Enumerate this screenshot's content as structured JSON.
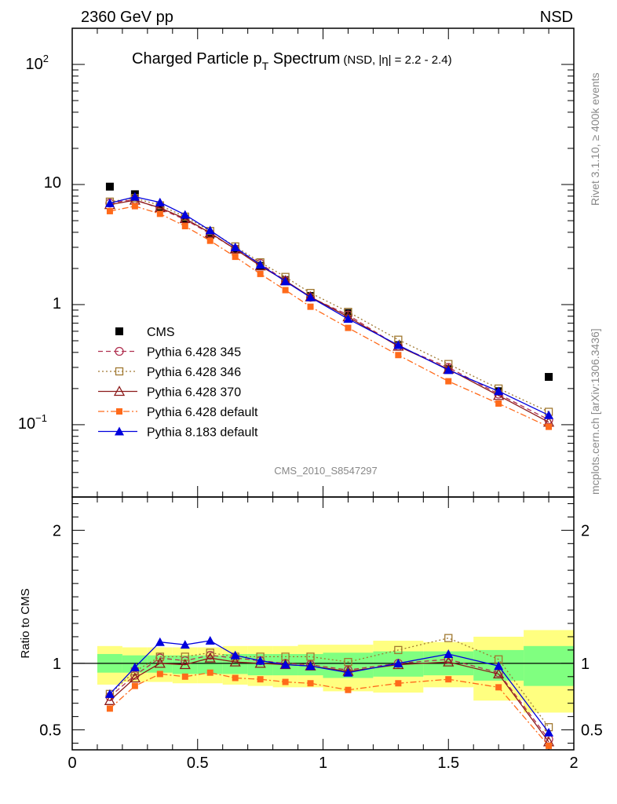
{
  "header": {
    "left": "2360 GeV pp",
    "right": "NSD",
    "rivet_note": "Rivet 3.1.10, ≥ 400k events",
    "mcplots_note": "mcplots.cern.ch [arXiv:1306.3436]",
    "analysis_id": "CMS_2010_S8547297"
  },
  "colors": {
    "cms": "#000000",
    "p345": "#b03050",
    "p346": "#a07830",
    "p370": "#8b1a1a",
    "pdefault": "#ff6a1a",
    "p8": "#0000dd",
    "band_outer": "#ffff80",
    "band_inner": "#80ff80"
  },
  "chart_data": [
    {
      "type": "scatter",
      "title": "Charged Particle p",
      "title_sub": "T",
      "title_suffix": " Spectrum",
      "title_extra": "(NSD, |η| = 2.2 - 2.4)",
      "yscale": "log",
      "ylim": [
        0.025,
        200
      ],
      "xlim": [
        0,
        2
      ],
      "ytick_labels": {
        "t100": "10",
        "t100sup": "2",
        "t10": "10",
        "t1": "1",
        "t01": "10",
        "t01sup": "−1"
      },
      "legend_placement": "center-left",
      "x": [
        0.15,
        0.25,
        0.35,
        0.45,
        0.55,
        0.65,
        0.75,
        0.85,
        0.95,
        1.1,
        1.3,
        1.5,
        1.7,
        1.9
      ],
      "series": [
        {
          "name": "CMS",
          "key": "cms",
          "marker": "square-filled",
          "line": "none",
          "values": [
            9.6,
            8.3,
            6.5,
            5.2,
            3.8,
            2.9,
            2.1,
            1.6,
            1.18,
            0.85,
            0.46,
            0.29,
            0.19,
            0.25
          ]
        },
        {
          "name": "Pythia 6.428 345",
          "key": "p345",
          "marker": "circle-open",
          "line": "dashed",
          "values": [
            7.0,
            7.5,
            6.3,
            5.1,
            3.9,
            2.9,
            2.2,
            1.58,
            1.15,
            0.82,
            0.45,
            0.3,
            0.18,
            0.11
          ]
        },
        {
          "name": "Pythia 6.428 346",
          "key": "p346",
          "marker": "square-open",
          "line": "dotted",
          "values": [
            7.2,
            7.7,
            6.7,
            5.4,
            4.1,
            3.05,
            2.25,
            1.7,
            1.25,
            0.87,
            0.51,
            0.32,
            0.2,
            0.128
          ]
        },
        {
          "name": "Pythia 6.428 370",
          "key": "p370",
          "marker": "triangle-open",
          "line": "solid",
          "values": [
            6.8,
            7.4,
            6.4,
            5.2,
            3.95,
            2.9,
            2.1,
            1.58,
            1.16,
            0.79,
            0.45,
            0.29,
            0.175,
            0.105
          ]
        },
        {
          "name": "Pythia 6.428 default",
          "key": "pdefault",
          "marker": "square-filled-small",
          "line": "dashdot",
          "values": [
            6.0,
            6.6,
            5.7,
            4.5,
            3.4,
            2.5,
            1.8,
            1.32,
            0.96,
            0.64,
            0.38,
            0.23,
            0.15,
            0.096
          ]
        },
        {
          "name": "Pythia 8.183 default",
          "key": "p8",
          "marker": "triangle-filled",
          "line": "solid",
          "values": [
            7.0,
            7.9,
            7.1,
            5.6,
            4.15,
            3.0,
            2.15,
            1.56,
            1.15,
            0.76,
            0.46,
            0.285,
            0.19,
            0.12
          ]
        }
      ]
    },
    {
      "type": "scatter",
      "ylabel": "Ratio to CMS",
      "xlabel": "",
      "ylim": [
        0.35,
        2.25
      ],
      "xlim": [
        0,
        2
      ],
      "yticks": [
        0.5,
        1,
        2
      ],
      "ytick_labels": [
        "0.5",
        "1",
        "2"
      ],
      "xticks": [
        0,
        0.5,
        1,
        1.5,
        2
      ],
      "xtick_labels": [
        "0",
        "0.5",
        "1",
        "1.5",
        "2"
      ],
      "reference_line": 1,
      "band_edges": [
        0.1,
        0.2,
        0.3,
        0.4,
        0.5,
        0.6,
        0.7,
        0.8,
        0.9,
        1.0,
        1.2,
        1.4,
        1.6,
        1.8,
        2.0
      ],
      "band_outer": [
        [
          0.84,
          1.13
        ],
        [
          0.86,
          1.12
        ],
        [
          0.86,
          1.12
        ],
        [
          0.85,
          1.12
        ],
        [
          0.85,
          1.12
        ],
        [
          0.84,
          1.13
        ],
        [
          0.83,
          1.13
        ],
        [
          0.82,
          1.13
        ],
        [
          0.82,
          1.14
        ],
        [
          0.79,
          1.14
        ],
        [
          0.78,
          1.17
        ],
        [
          0.82,
          1.16
        ],
        [
          0.72,
          1.2
        ],
        [
          0.63,
          1.25
        ]
      ],
      "band_inner": [
        [
          0.93,
          1.07
        ],
        [
          0.93,
          1.06
        ],
        [
          0.93,
          1.06
        ],
        [
          0.92,
          1.06
        ],
        [
          0.92,
          1.06
        ],
        [
          0.92,
          1.07
        ],
        [
          0.91,
          1.07
        ],
        [
          0.91,
          1.07
        ],
        [
          0.91,
          1.07
        ],
        [
          0.89,
          1.08
        ],
        [
          0.9,
          1.09
        ],
        [
          0.91,
          1.09
        ],
        [
          0.87,
          1.1
        ],
        [
          0.83,
          1.13
        ]
      ],
      "x": [
        0.15,
        0.25,
        0.35,
        0.45,
        0.55,
        0.65,
        0.75,
        0.85,
        0.95,
        1.1,
        1.3,
        1.5,
        1.7,
        1.9
      ],
      "series": [
        {
          "name": "Pythia 6.428 345",
          "key": "p345",
          "marker": "circle-open",
          "line": "dashed",
          "values": [
            0.75,
            0.91,
            1.04,
            1.02,
            1.06,
            1.04,
            1.02,
            1.0,
            0.99,
            0.95,
            1.0,
            1.03,
            0.93,
            0.43
          ]
        },
        {
          "name": "Pythia 6.428 346",
          "key": "p346",
          "marker": "square-open",
          "line": "dotted",
          "values": [
            0.77,
            0.94,
            1.05,
            1.05,
            1.08,
            1.05,
            1.05,
            1.05,
            1.05,
            1.01,
            1.1,
            1.19,
            1.03,
            0.52
          ]
        },
        {
          "name": "Pythia 6.428 370",
          "key": "p370",
          "marker": "triangle-open",
          "line": "solid",
          "values": [
            0.72,
            0.89,
            1.0,
            0.99,
            1.04,
            1.01,
            1.0,
            0.99,
            0.98,
            0.94,
            0.99,
            1.01,
            0.92,
            0.41
          ]
        },
        {
          "name": "Pythia 6.428 default",
          "key": "pdefault",
          "marker": "square-filled-small",
          "line": "dashdot",
          "values": [
            0.66,
            0.83,
            0.92,
            0.9,
            0.93,
            0.89,
            0.88,
            0.86,
            0.85,
            0.8,
            0.85,
            0.88,
            0.82,
            0.38
          ]
        },
        {
          "name": "Pythia 8.183 default",
          "key": "p8",
          "marker": "triangle-filled",
          "line": "solid",
          "values": [
            0.77,
            0.97,
            1.16,
            1.14,
            1.17,
            1.06,
            1.02,
            0.99,
            0.98,
            0.93,
            1.0,
            1.07,
            0.98,
            0.48
          ]
        }
      ]
    }
  ]
}
